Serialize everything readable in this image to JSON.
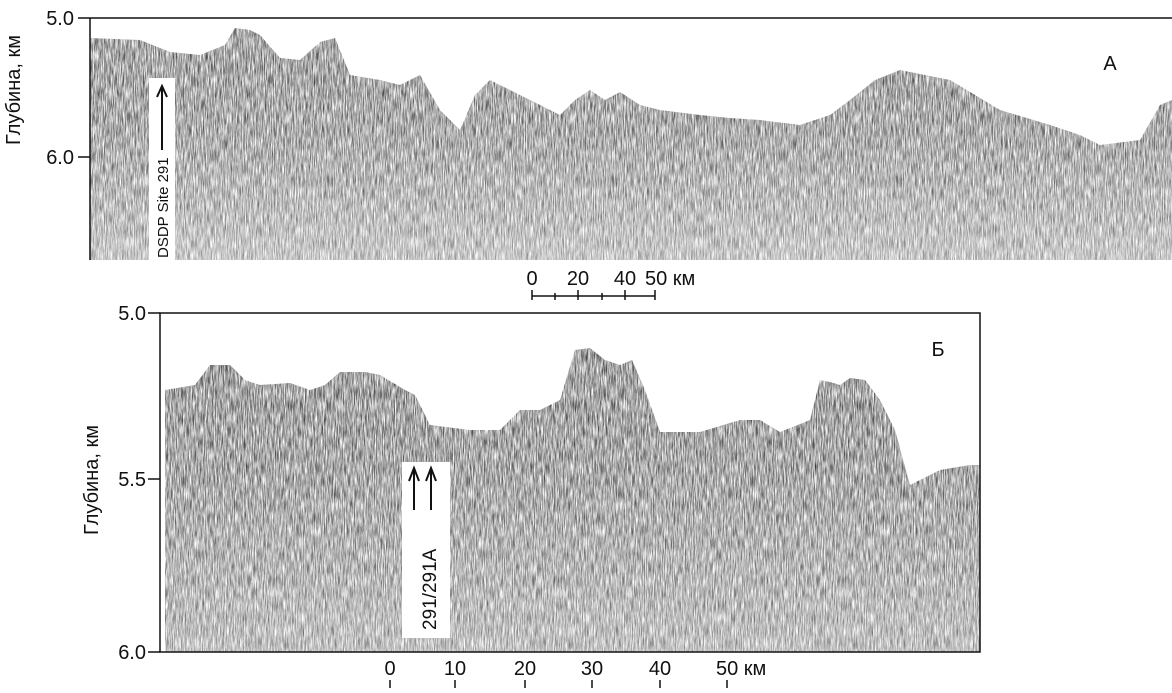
{
  "panels": [
    {
      "label": "А",
      "y_axis_label": "Глубина, км",
      "y_ticks": [
        "5.0",
        "6.0"
      ],
      "marker": "DSDP Site 291",
      "scale": [
        "0",
        "20",
        "40",
        "50 км"
      ]
    },
    {
      "label": "Б",
      "y_axis_label": "Глубина, км",
      "y_ticks": [
        "5.0",
        "5.5",
        "6.0"
      ],
      "marker": "291/291A",
      "scale": [
        "0",
        "10",
        "20",
        "30",
        "40",
        "50 км"
      ]
    }
  ]
}
